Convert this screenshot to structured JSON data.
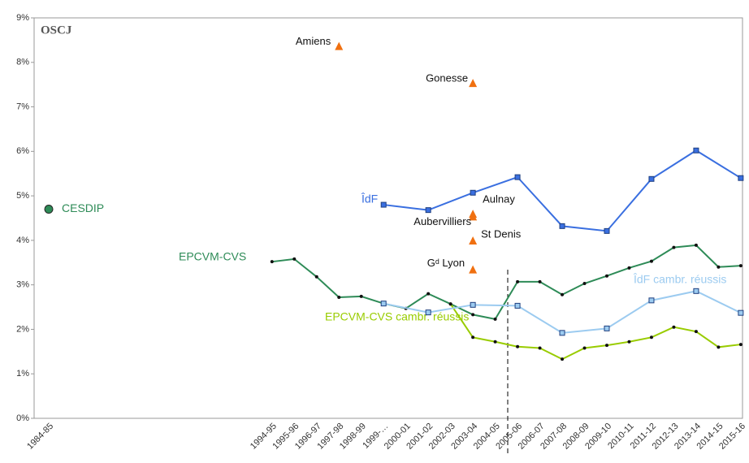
{
  "chart_data": {
    "type": "line",
    "logo": "OSCJ",
    "categories": [
      "1984-85",
      null,
      null,
      null,
      null,
      null,
      null,
      null,
      null,
      null,
      "1994-95",
      "1995-96",
      "1996-97",
      "1997-98",
      "1998-99",
      "1999-…",
      "2000-01",
      "2001-02",
      "2002-03",
      "2003-04",
      "2004-05",
      "2005-06",
      "2006-07",
      "2007-08",
      "2008-09",
      "2009-10",
      "2010-11",
      "2011-12",
      "2012-13",
      "2013-14",
      "2014-15",
      "2015-16"
    ],
    "ylim": [
      0,
      9
    ],
    "yticks": [
      {
        "value": 0,
        "label": "0%"
      },
      {
        "value": 1,
        "label": "1%"
      },
      {
        "value": 2,
        "label": "2%"
      },
      {
        "value": 3,
        "label": "3%"
      },
      {
        "value": 4,
        "label": "4%"
      },
      {
        "value": 5,
        "label": "5%"
      },
      {
        "value": 6,
        "label": "6%"
      },
      {
        "value": 7,
        "label": "7%"
      },
      {
        "value": 8,
        "label": "8%"
      },
      {
        "value": 9,
        "label": "9%"
      }
    ],
    "connect_nulls": true,
    "series": [
      {
        "name": "EPCVM-CVS",
        "color": "#2e8b57",
        "marker": "dot",
        "values": [
          null,
          null,
          null,
          null,
          null,
          null,
          null,
          null,
          null,
          null,
          3.52,
          3.58,
          3.18,
          2.72,
          2.74,
          2.58,
          2.47,
          2.8,
          2.57,
          2.33,
          2.23,
          3.07,
          3.07,
          2.78,
          3.03,
          3.2,
          3.38,
          3.53,
          3.84,
          3.89,
          3.4,
          3.43
        ]
      },
      {
        "name": "EPCVM-CVS cambr. réussis",
        "color": "#99cc00",
        "marker": "dot",
        "values": [
          null,
          null,
          null,
          null,
          null,
          null,
          null,
          null,
          null,
          null,
          null,
          null,
          null,
          null,
          null,
          null,
          null,
          null,
          2.57,
          1.82,
          1.72,
          1.61,
          1.58,
          1.33,
          1.58,
          1.64,
          1.72,
          1.82,
          2.05,
          1.95,
          1.6,
          1.66
        ]
      },
      {
        "name": "ÎdF",
        "color": "#3a6fe0",
        "marker": "square",
        "values": [
          null,
          null,
          null,
          null,
          null,
          null,
          null,
          null,
          null,
          null,
          null,
          null,
          null,
          null,
          null,
          4.8,
          null,
          4.68,
          null,
          5.07,
          null,
          5.42,
          null,
          4.32,
          null,
          4.21,
          null,
          5.38,
          null,
          6.02,
          null,
          5.4
        ]
      },
      {
        "name": "ÎdF cambr. réussis",
        "color": "#9ccbf0",
        "marker": "square",
        "values": [
          null,
          null,
          null,
          null,
          null,
          null,
          null,
          null,
          null,
          null,
          null,
          null,
          null,
          null,
          null,
          2.58,
          null,
          2.38,
          null,
          2.55,
          null,
          2.53,
          null,
          1.92,
          null,
          2.02,
          null,
          2.65,
          null,
          2.86,
          null,
          2.37
        ]
      }
    ],
    "points": [
      {
        "name": "CESDIP",
        "category": 0,
        "value": 4.7,
        "color": "#2e8b57",
        "marker": "circle"
      },
      {
        "name": "Amiens",
        "category": 13,
        "value": 8.35,
        "color": "#f07010",
        "marker": "triangle"
      },
      {
        "name": "Gonesse",
        "category": 19,
        "value": 7.52,
        "color": "#f07010",
        "marker": "triangle"
      },
      {
        "name": "Aulnay",
        "category": 19,
        "value": 4.58,
        "color": "#f07010",
        "marker": "triangle"
      },
      {
        "name": "Aubervilliers",
        "category": 19,
        "value": 4.52,
        "color": "#f07010",
        "marker": "triangle"
      },
      {
        "name": "St Denis",
        "category": 19,
        "value": 3.98,
        "color": "#f07010",
        "marker": "triangle"
      },
      {
        "name": "Gᵈ Lyon",
        "category": 19,
        "value": 3.33,
        "color": "#f07010",
        "marker": "triangle"
      }
    ]
  }
}
